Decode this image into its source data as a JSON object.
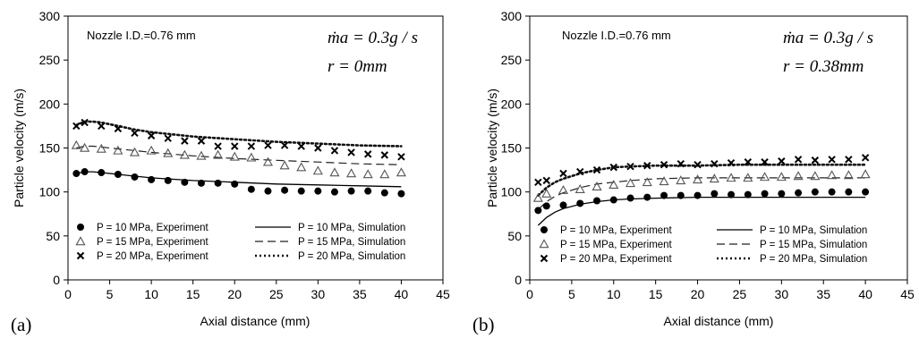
{
  "chart_data": [
    {
      "type": "scatter",
      "panel_label": "(a)",
      "note": "Nozzle I.D.=0.76 mm",
      "formula_line1": "ṁa = 0.3g / s",
      "formula_line2": "r = 0mm",
      "xlabel": "Axial distance (mm)",
      "ylabel": "Particle velocity (m/s)",
      "xlim": [
        0,
        45
      ],
      "ylim": [
        0,
        300
      ],
      "xticks": [
        "0",
        "5",
        "10",
        "15",
        "20",
        "25",
        "30",
        "35",
        "40",
        "45"
      ],
      "yticks": [
        "0",
        "50",
        "100",
        "150",
        "200",
        "250",
        "300"
      ],
      "grid": false,
      "legend_position": "bottom",
      "series": [
        {
          "name": "P = 10 MPa, Experiment",
          "kind": "experiment",
          "marker": "circle",
          "x": [
            1,
            2,
            4,
            6,
            8,
            10,
            12,
            14,
            16,
            18,
            20,
            22,
            24,
            26,
            28,
            30,
            32,
            34,
            36,
            38,
            40
          ],
          "y": [
            121,
            123,
            122,
            120,
            117,
            114,
            113,
            111,
            110,
            110,
            109,
            103,
            101,
            102,
            101,
            101,
            100,
            101,
            101,
            99,
            98
          ]
        },
        {
          "name": "P = 15 MPa, Experiment",
          "kind": "experiment",
          "marker": "triangle",
          "x": [
            1,
            2,
            4,
            6,
            8,
            10,
            12,
            14,
            16,
            18,
            20,
            22,
            24,
            26,
            28,
            30,
            32,
            34,
            36,
            38,
            40
          ],
          "y": [
            153,
            150,
            149,
            147,
            145,
            147,
            144,
            142,
            141,
            142,
            140,
            139,
            134,
            130,
            128,
            124,
            122,
            121,
            120,
            120,
            122
          ]
        },
        {
          "name": "P = 20 MPa, Experiment",
          "kind": "experiment",
          "marker": "cross",
          "x": [
            1,
            2,
            4,
            6,
            8,
            10,
            12,
            14,
            16,
            18,
            20,
            22,
            24,
            26,
            28,
            30,
            32,
            34,
            36,
            38,
            40
          ],
          "y": [
            175,
            179,
            175,
            172,
            167,
            164,
            161,
            158,
            158,
            152,
            152,
            152,
            153,
            153,
            152,
            150,
            147,
            145,
            143,
            142,
            140
          ]
        },
        {
          "name": "P = 10 MPa, Simulation",
          "kind": "simulation",
          "dash": "solid",
          "x": [
            1,
            2,
            3,
            4,
            6,
            8,
            10,
            15,
            20,
            25,
            30,
            35,
            40
          ],
          "y": [
            121,
            123,
            123,
            122,
            120,
            118,
            116,
            113,
            111,
            109,
            108,
            107,
            106
          ]
        },
        {
          "name": "P = 15 MPa, Simulation",
          "kind": "simulation",
          "dash": "dashed",
          "x": [
            1,
            2,
            3,
            4,
            6,
            8,
            10,
            15,
            20,
            25,
            30,
            35,
            40
          ],
          "y": [
            150,
            152,
            152,
            151,
            149,
            147,
            145,
            141,
            138,
            136,
            134,
            132,
            131
          ]
        },
        {
          "name": "P = 20 MPa, Simulation",
          "kind": "simulation",
          "dash": "dotted",
          "x": [
            1,
            2,
            3,
            4,
            6,
            8,
            10,
            15,
            20,
            25,
            30,
            35,
            40
          ],
          "y": [
            176,
            180,
            180,
            179,
            175,
            171,
            168,
            163,
            160,
            157,
            155,
            153,
            152
          ]
        }
      ]
    },
    {
      "type": "scatter",
      "panel_label": "(b)",
      "note": "Nozzle I.D.=0.76 mm",
      "formula_line1": "ṁa = 0.3g / s",
      "formula_line2": "r = 0.38mm",
      "xlabel": "Axial distance (mm)",
      "ylabel": "Particle velocity (m/s)",
      "xlim": [
        0,
        45
      ],
      "ylim": [
        0,
        300
      ],
      "xticks": [
        "0",
        "5",
        "10",
        "15",
        "20",
        "25",
        "30",
        "35",
        "40",
        "45"
      ],
      "yticks": [
        "0",
        "50",
        "100",
        "150",
        "200",
        "250",
        "300"
      ],
      "grid": false,
      "legend_position": "bottom",
      "series": [
        {
          "name": "P = 10 MPa, Experiment",
          "kind": "experiment",
          "marker": "circle",
          "x": [
            1,
            2,
            4,
            6,
            8,
            10,
            12,
            14,
            16,
            18,
            20,
            22,
            24,
            26,
            28,
            30,
            32,
            34,
            36,
            38,
            40
          ],
          "y": [
            79,
            84,
            85,
            87,
            90,
            91,
            93,
            94,
            96,
            96,
            96,
            98,
            97,
            97,
            98,
            98,
            99,
            100,
            100,
            100,
            100
          ]
        },
        {
          "name": "P = 15 MPa, Experiment",
          "kind": "experiment",
          "marker": "triangle",
          "x": [
            1,
            2,
            4,
            6,
            8,
            10,
            12,
            14,
            16,
            18,
            20,
            22,
            24,
            26,
            28,
            30,
            32,
            34,
            36,
            38,
            40
          ],
          "y": [
            93,
            98,
            102,
            103,
            106,
            108,
            110,
            111,
            112,
            113,
            114,
            115,
            116,
            116,
            117,
            117,
            118,
            118,
            119,
            119,
            120
          ]
        },
        {
          "name": "P = 20 MPa, Experiment",
          "kind": "experiment",
          "marker": "cross",
          "x": [
            1,
            2,
            4,
            6,
            8,
            10,
            12,
            14,
            16,
            18,
            20,
            22,
            24,
            26,
            28,
            30,
            32,
            34,
            36,
            38,
            40
          ],
          "y": [
            111,
            113,
            121,
            123,
            125,
            128,
            129,
            130,
            131,
            132,
            131,
            132,
            133,
            134,
            134,
            135,
            137,
            136,
            137,
            137,
            139
          ]
        },
        {
          "name": "P = 10 MPa, Simulation",
          "kind": "simulation",
          "dash": "solid",
          "x": [
            1,
            2,
            3,
            4,
            6,
            8,
            10,
            12,
            15,
            20,
            25,
            30,
            35,
            40
          ],
          "y": [
            62,
            71,
            77,
            81,
            86,
            89,
            91,
            92,
            93,
            94,
            94,
            94,
            94,
            94
          ]
        },
        {
          "name": "P = 15 MPa, Simulation",
          "kind": "simulation",
          "dash": "dashed",
          "x": [
            1,
            2,
            3,
            4,
            6,
            8,
            10,
            12,
            15,
            20,
            25,
            30,
            35,
            40
          ],
          "y": [
            80,
            89,
            95,
            99,
            105,
            109,
            111,
            113,
            115,
            116,
            116,
            116,
            116,
            116
          ]
        },
        {
          "name": "P = 20 MPa, Simulation",
          "kind": "simulation",
          "dash": "dotted",
          "x": [
            1,
            2,
            3,
            4,
            6,
            8,
            10,
            12,
            15,
            20,
            25,
            30,
            35,
            40
          ],
          "y": [
            96,
            105,
            111,
            115,
            121,
            125,
            128,
            129,
            130,
            130,
            131,
            131,
            131,
            131
          ]
        }
      ]
    }
  ]
}
